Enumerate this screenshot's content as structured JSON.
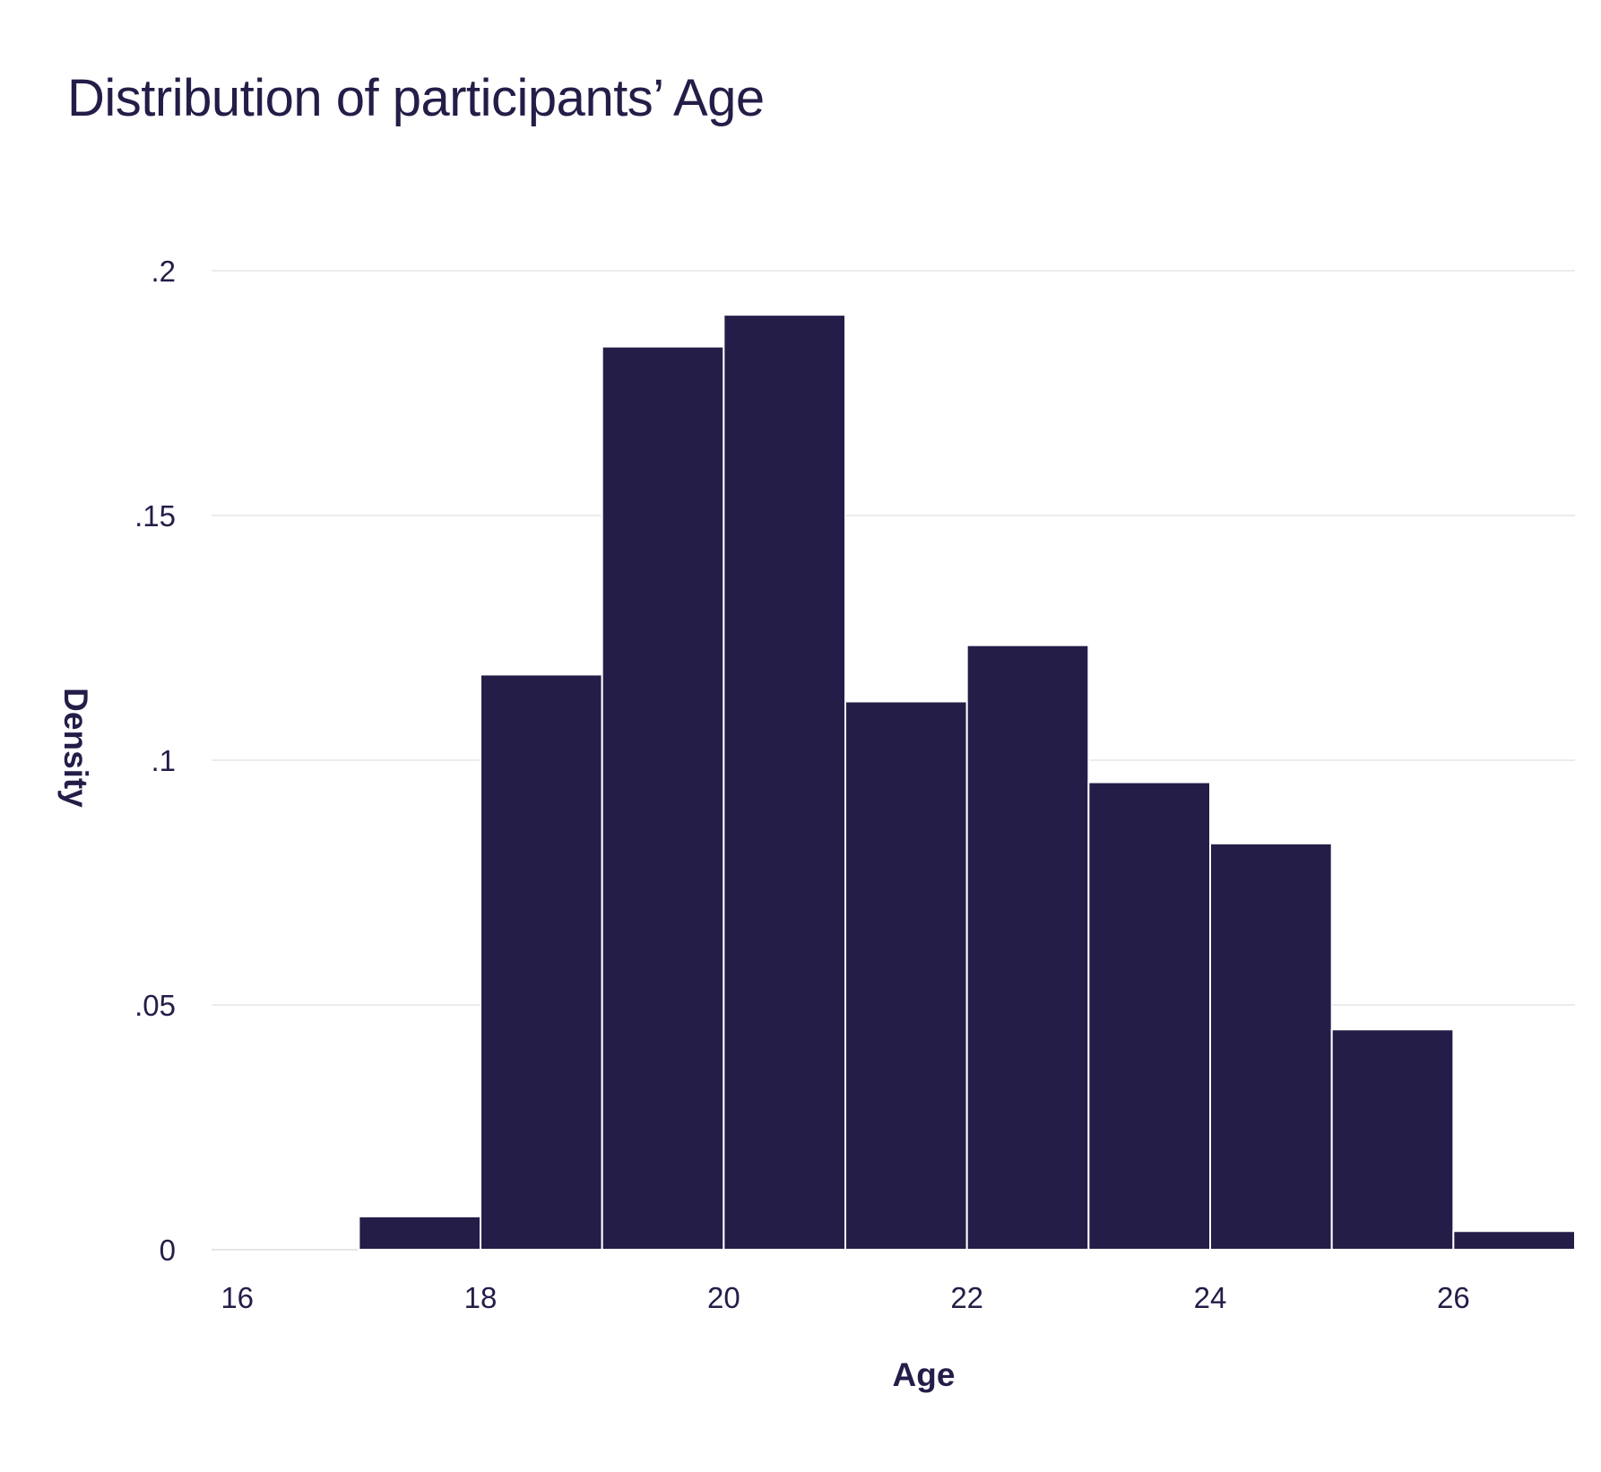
{
  "chart_data": {
    "type": "bar",
    "title": "Distribution of participants’ Age",
    "xlabel": "Age",
    "ylabel": "Density",
    "xlim": [
      15.7,
      27
    ],
    "ylim": [
      0,
      0.2
    ],
    "bin_width": 1,
    "bins": [
      {
        "start": 17,
        "end": 18,
        "value": 0.0068
      },
      {
        "start": 18,
        "end": 19,
        "value": 0.1175
      },
      {
        "start": 19,
        "end": 20,
        "value": 0.1845
      },
      {
        "start": 20,
        "end": 21,
        "value": 0.191
      },
      {
        "start": 21,
        "end": 22,
        "value": 0.112
      },
      {
        "start": 22,
        "end": 23,
        "value": 0.1235
      },
      {
        "start": 23,
        "end": 24,
        "value": 0.0955
      },
      {
        "start": 24,
        "end": 25,
        "value": 0.083
      },
      {
        "start": 25,
        "end": 26,
        "value": 0.045
      },
      {
        "start": 26,
        "end": 27,
        "value": 0.0038
      }
    ],
    "x_ticks": [
      {
        "value": 16,
        "label": "16"
      },
      {
        "value": 18,
        "label": "18"
      },
      {
        "value": 20,
        "label": "20"
      },
      {
        "value": 22,
        "label": "22"
      },
      {
        "value": 24,
        "label": "24"
      },
      {
        "value": 26,
        "label": "26"
      }
    ],
    "y_ticks": [
      {
        "value": 0,
        "label": "0"
      },
      {
        "value": 0.05,
        "label": ".05"
      },
      {
        "value": 0.1,
        "label": ".1"
      },
      {
        "value": 0.15,
        "label": ".15"
      },
      {
        "value": 0.2,
        "label": ".2"
      }
    ],
    "grid": "horizontal",
    "legend": "none",
    "colors": {
      "bar": "#241d48",
      "bar_edge": "#ffffff",
      "grid": "#e6e6e6",
      "text": "#241d48"
    }
  }
}
